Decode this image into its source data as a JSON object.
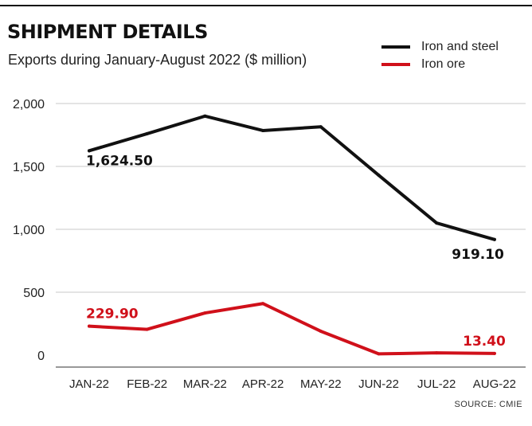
{
  "header": {
    "title": "SHIPMENT DETAILS",
    "subtitle": "Exports during January-August 2022 ($ million)"
  },
  "legend": [
    {
      "label": "Iron and steel",
      "color": "#111111"
    },
    {
      "label": "Iron ore",
      "color": "#d0101a"
    }
  ],
  "source": "SOURCE: CMIE",
  "chart_data": {
    "type": "line",
    "title": "SHIPMENT DETAILS",
    "subtitle": "Exports during January-August 2022 ($ million)",
    "categories": [
      "JAN-22",
      "FEB-22",
      "MAR-22",
      "APR-22",
      "MAY-22",
      "JUN-22",
      "JUL-22",
      "AUG-22"
    ],
    "yticks": [
      "2,000",
      "1,500",
      "1,000",
      "500",
      "0"
    ],
    "ytick_values": [
      2000,
      1500,
      1000,
      500,
      0
    ],
    "ylim": [
      0,
      2000
    ],
    "grid": true,
    "legend_position": "top-right",
    "series": [
      {
        "name": "Iron and steel",
        "color": "#111111",
        "values": [
          1624.5,
          1760,
          1900,
          1785,
          1815,
          1430,
          1050,
          919.1
        ],
        "labels": [
          {
            "index": 0,
            "text": "1,624.50"
          },
          {
            "index": 7,
            "text": "919.10"
          }
        ]
      },
      {
        "name": "Iron ore",
        "color": "#d0101a",
        "values": [
          229.9,
          205,
          335,
          410,
          190,
          10,
          18,
          13.4
        ],
        "labels": [
          {
            "index": 0,
            "text": "229.90"
          },
          {
            "index": 7,
            "text": "13.40"
          }
        ]
      }
    ]
  }
}
